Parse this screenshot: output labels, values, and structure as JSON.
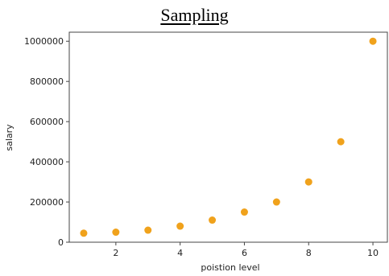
{
  "title": "Sampling",
  "chart_data": {
    "type": "scatter",
    "title": "Sampling",
    "xlabel": "poistion level",
    "ylabel": "salary",
    "x": [
      1,
      2,
      3,
      4,
      5,
      6,
      7,
      8,
      9,
      10
    ],
    "y": [
      45000,
      50000,
      60000,
      80000,
      110000,
      150000,
      200000,
      300000,
      500000,
      1000000
    ],
    "x_ticks": [
      "2",
      "4",
      "6",
      "8",
      "10"
    ],
    "y_ticks": [
      "0",
      "200000",
      "400000",
      "600000",
      "800000",
      "1000000"
    ],
    "xlim": [
      0.55,
      10.45
    ],
    "ylim": [
      0,
      1045000
    ],
    "grid": false,
    "marker_color": "#f0a21c",
    "axis_color": "#444444"
  }
}
